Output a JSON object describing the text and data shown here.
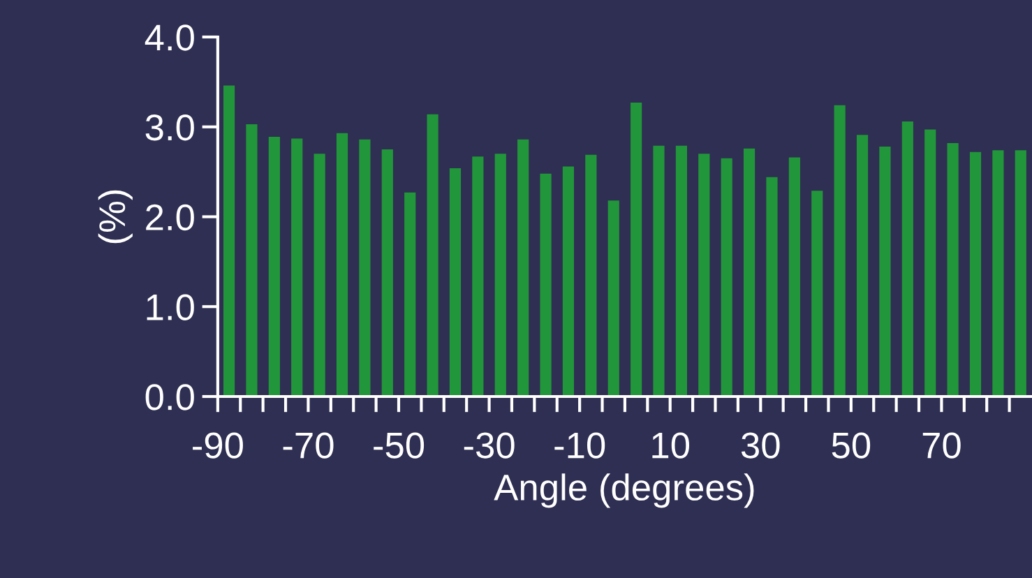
{
  "chart_data": {
    "type": "histogram",
    "xlabel": "Angle (degrees)",
    "ylabel": "(%)",
    "bins": [
      -90,
      -85,
      -80,
      -75,
      -70,
      -65,
      -60,
      -55,
      -50,
      -45,
      -40,
      -35,
      -30,
      -25,
      -20,
      -15,
      -10,
      -5,
      0,
      5,
      10,
      15,
      20,
      25,
      30,
      35,
      40,
      45,
      50,
      55,
      60,
      65,
      70,
      75,
      80,
      85,
      90
    ],
    "values": [
      3.46,
      3.03,
      2.89,
      2.87,
      2.7,
      2.93,
      2.86,
      2.75,
      2.27,
      3.14,
      2.54,
      2.67,
      2.7,
      2.86,
      2.48,
      2.56,
      2.69,
      2.18,
      3.27,
      2.79,
      2.79,
      2.7,
      2.65,
      2.76,
      2.44,
      2.66,
      2.29,
      3.24,
      2.91,
      2.78,
      3.06,
      2.97,
      2.82,
      2.72,
      2.74,
      2.74
    ],
    "color": "#22963a",
    "xlim": [
      -90,
      90
    ],
    "xticks": [
      -90,
      {
        "value": -85,
        "label": null
      },
      {
        "value": -80,
        "label": null
      },
      {
        "value": -75,
        "label": null
      },
      -70,
      {
        "value": -65,
        "label": null
      },
      {
        "value": -60,
        "label": null
      },
      {
        "value": -55,
        "label": null
      },
      -50,
      {
        "value": -45,
        "label": null
      },
      {
        "value": -40,
        "label": null
      },
      {
        "value": -35,
        "label": null
      },
      -30,
      {
        "value": -25,
        "label": null
      },
      {
        "value": -20,
        "label": null
      },
      {
        "value": -15,
        "label": null
      },
      -10,
      {
        "value": -5,
        "label": null
      },
      {
        "value": 0,
        "label": null
      },
      {
        "value": 5,
        "label": null
      },
      10,
      {
        "value": 15,
        "label": null
      },
      {
        "value": 20,
        "label": null
      },
      {
        "value": 25,
        "label": null
      },
      30,
      {
        "value": 35,
        "label": null
      },
      {
        "value": 40,
        "label": null
      },
      {
        "value": 45,
        "label": null
      },
      50,
      {
        "value": 55,
        "label": null
      },
      {
        "value": 60,
        "label": null
      },
      {
        "value": 65,
        "label": null
      },
      70,
      {
        "value": 75,
        "label": null
      },
      {
        "value": 80,
        "label": null
      },
      {
        "value": 85,
        "label": null
      }
    ],
    "ylim": [
      0,
      4
    ],
    "yticks": [
      {
        "value": 0,
        "label": "0.0"
      },
      {
        "value": 1,
        "label": "1.0"
      },
      {
        "value": 2,
        "label": "2.0"
      },
      {
        "value": 3,
        "label": "3.0"
      },
      {
        "value": 4,
        "label": "4.0"
      }
    ],
    "grid": false,
    "legend": false
  }
}
